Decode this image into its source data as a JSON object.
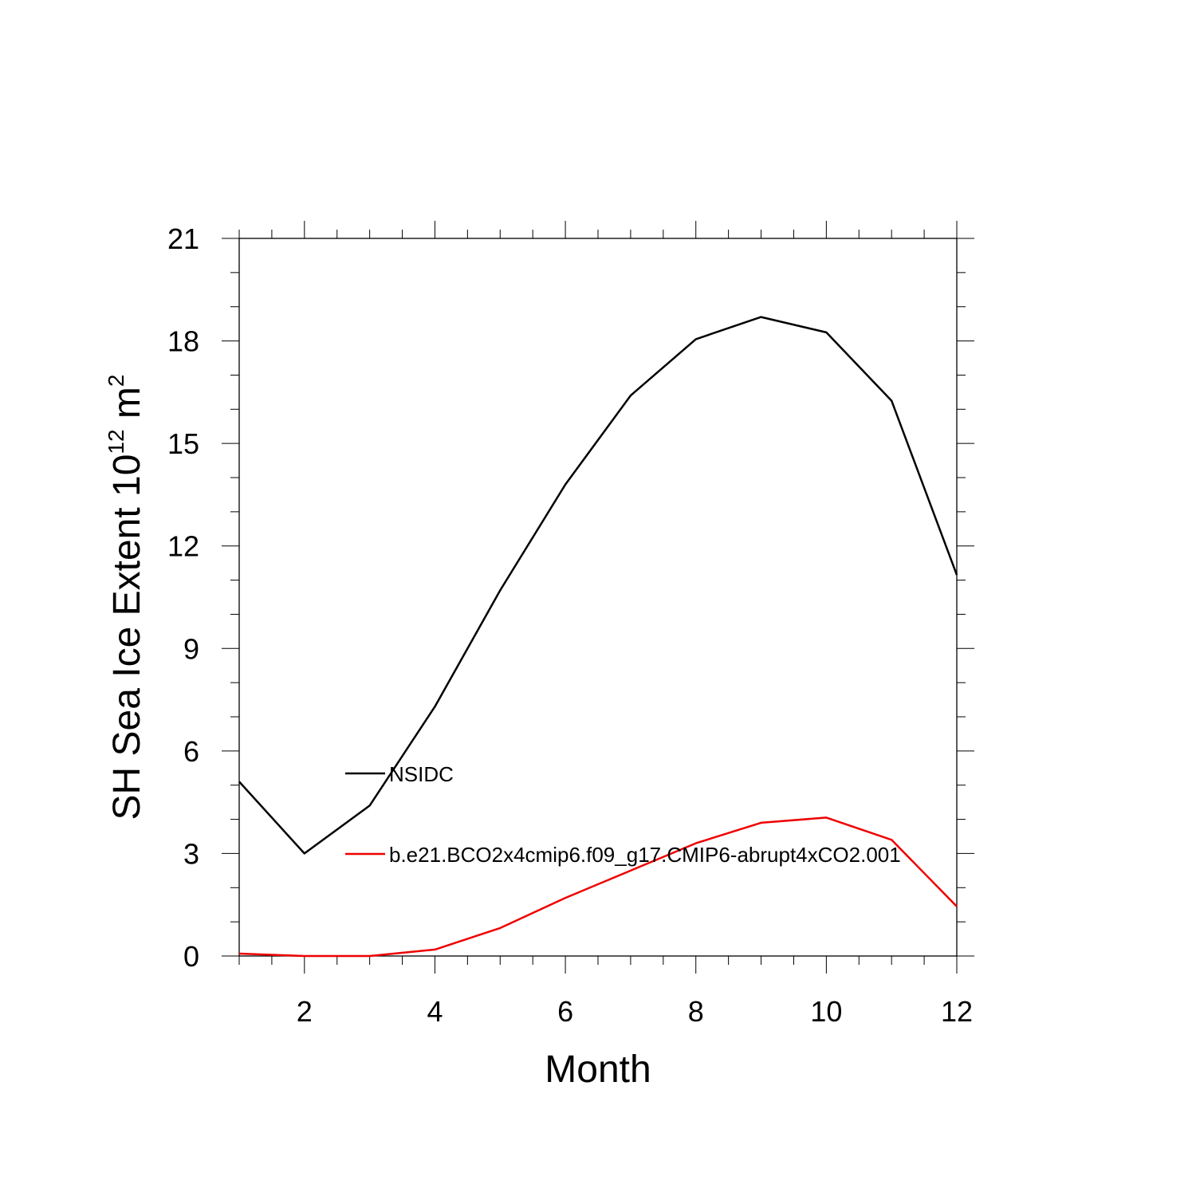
{
  "chart_data": {
    "type": "line",
    "xlabel": "Month",
    "ylabel_main": "SH Sea Ice Extent 10",
    "ylabel_exp": "12",
    "ylabel_unit": " m",
    "ylabel_unit_exp": "2",
    "xlim": [
      1,
      12
    ],
    "ylim": [
      0,
      21
    ],
    "xticks": [
      2,
      4,
      6,
      8,
      10,
      12
    ],
    "yticks": [
      0,
      3,
      6,
      9,
      12,
      15,
      18,
      21
    ],
    "grid": false,
    "legend_position": "center-left",
    "x": [
      1,
      2,
      3,
      4,
      5,
      6,
      7,
      8,
      9,
      10,
      11,
      12
    ],
    "series": [
      {
        "name": "NSIDC",
        "color": "#000000",
        "values": [
          5.1,
          3.0,
          4.4,
          7.3,
          10.7,
          13.8,
          16.4,
          18.05,
          18.7,
          18.25,
          16.25,
          11.15
        ]
      },
      {
        "name": "b.e21.BCO2x4cmip6.f09_g17.CMIP6-abrupt4xCO2.001",
        "color": "#ee0000",
        "values": [
          0.07,
          0.0,
          0.0,
          0.19,
          0.82,
          1.7,
          2.5,
          3.3,
          3.9,
          4.05,
          3.4,
          1.45
        ]
      }
    ]
  }
}
